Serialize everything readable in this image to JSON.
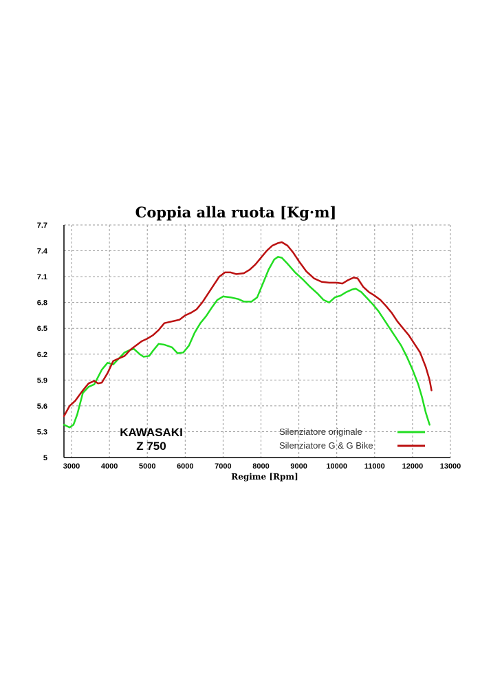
{
  "chart_data": {
    "type": "line",
    "title": "Coppia alla ruota [Kg·m]",
    "xlabel": "Regime [Rpm]",
    "ylabel": "",
    "xlim": [
      2800,
      13000
    ],
    "ylim": [
      5.0,
      7.7
    ],
    "x_ticks": [
      "3000",
      "4000",
      "5000",
      "6000",
      "7000",
      "8000",
      "9000",
      "10000",
      "11000",
      "12000",
      "13000"
    ],
    "y_ticks": [
      "7.7",
      "7.4",
      "7.1",
      "6.8",
      "6.5",
      "6.2",
      "5.9",
      "5.6",
      "5.3",
      "5"
    ],
    "grid": true,
    "legend_position": "bottom-right",
    "annotation": [
      "KAWASAKI",
      "Z 750"
    ],
    "series": [
      {
        "name": "Silenziatore originale",
        "color": "#22dd22",
        "points": [
          [
            2800,
            5.38
          ],
          [
            2950,
            5.35
          ],
          [
            3050,
            5.38
          ],
          [
            3150,
            5.5
          ],
          [
            3300,
            5.75
          ],
          [
            3450,
            5.82
          ],
          [
            3600,
            5.85
          ],
          [
            3800,
            6.02
          ],
          [
            3950,
            6.1
          ],
          [
            4100,
            6.08
          ],
          [
            4250,
            6.15
          ],
          [
            4400,
            6.22
          ],
          [
            4550,
            6.25
          ],
          [
            4650,
            6.26
          ],
          [
            4800,
            6.2
          ],
          [
            4900,
            6.17
          ],
          [
            5050,
            6.18
          ],
          [
            5150,
            6.24
          ],
          [
            5300,
            6.32
          ],
          [
            5450,
            6.31
          ],
          [
            5650,
            6.28
          ],
          [
            5800,
            6.21
          ],
          [
            5950,
            6.22
          ],
          [
            6100,
            6.3
          ],
          [
            6250,
            6.45
          ],
          [
            6400,
            6.56
          ],
          [
            6550,
            6.64
          ],
          [
            6700,
            6.74
          ],
          [
            6850,
            6.83
          ],
          [
            7000,
            6.87
          ],
          [
            7200,
            6.86
          ],
          [
            7400,
            6.84
          ],
          [
            7550,
            6.81
          ],
          [
            7750,
            6.81
          ],
          [
            7900,
            6.86
          ],
          [
            8050,
            7.02
          ],
          [
            8200,
            7.18
          ],
          [
            8350,
            7.3
          ],
          [
            8450,
            7.33
          ],
          [
            8550,
            7.32
          ],
          [
            8700,
            7.25
          ],
          [
            8900,
            7.15
          ],
          [
            9100,
            7.07
          ],
          [
            9300,
            6.98
          ],
          [
            9500,
            6.9
          ],
          [
            9650,
            6.83
          ],
          [
            9800,
            6.8
          ],
          [
            9950,
            6.86
          ],
          [
            10100,
            6.88
          ],
          [
            10250,
            6.92
          ],
          [
            10400,
            6.95
          ],
          [
            10500,
            6.96
          ],
          [
            10650,
            6.92
          ],
          [
            10800,
            6.85
          ],
          [
            10950,
            6.78
          ],
          [
            11100,
            6.7
          ],
          [
            11250,
            6.6
          ],
          [
            11400,
            6.5
          ],
          [
            11550,
            6.4
          ],
          [
            11700,
            6.3
          ],
          [
            11850,
            6.17
          ],
          [
            12000,
            6.02
          ],
          [
            12150,
            5.85
          ],
          [
            12250,
            5.7
          ],
          [
            12350,
            5.52
          ],
          [
            12450,
            5.38
          ]
        ]
      },
      {
        "name": "Silenziatore G & G Bike",
        "color": "#bb1111",
        "points": [
          [
            2800,
            5.48
          ],
          [
            2950,
            5.6
          ],
          [
            3100,
            5.66
          ],
          [
            3300,
            5.78
          ],
          [
            3450,
            5.86
          ],
          [
            3600,
            5.89
          ],
          [
            3700,
            5.86
          ],
          [
            3800,
            5.87
          ],
          [
            3950,
            5.98
          ],
          [
            4100,
            6.12
          ],
          [
            4250,
            6.15
          ],
          [
            4400,
            6.18
          ],
          [
            4550,
            6.25
          ],
          [
            4700,
            6.3
          ],
          [
            4850,
            6.35
          ],
          [
            5000,
            6.38
          ],
          [
            5150,
            6.42
          ],
          [
            5300,
            6.48
          ],
          [
            5450,
            6.56
          ],
          [
            5650,
            6.58
          ],
          [
            5850,
            6.6
          ],
          [
            6000,
            6.65
          ],
          [
            6150,
            6.68
          ],
          [
            6300,
            6.72
          ],
          [
            6450,
            6.8
          ],
          [
            6600,
            6.9
          ],
          [
            6750,
            7.0
          ],
          [
            6900,
            7.1
          ],
          [
            7050,
            7.15
          ],
          [
            7200,
            7.15
          ],
          [
            7350,
            7.13
          ],
          [
            7550,
            7.14
          ],
          [
            7700,
            7.18
          ],
          [
            7850,
            7.24
          ],
          [
            8000,
            7.32
          ],
          [
            8150,
            7.4
          ],
          [
            8300,
            7.46
          ],
          [
            8450,
            7.49
          ],
          [
            8550,
            7.5
          ],
          [
            8700,
            7.46
          ],
          [
            8850,
            7.38
          ],
          [
            9000,
            7.28
          ],
          [
            9200,
            7.16
          ],
          [
            9400,
            7.08
          ],
          [
            9600,
            7.04
          ],
          [
            9800,
            7.03
          ],
          [
            10000,
            7.03
          ],
          [
            10150,
            7.02
          ],
          [
            10300,
            7.06
          ],
          [
            10450,
            7.09
          ],
          [
            10550,
            7.08
          ],
          [
            10700,
            6.98
          ],
          [
            10850,
            6.92
          ],
          [
            11000,
            6.88
          ],
          [
            11150,
            6.83
          ],
          [
            11300,
            6.76
          ],
          [
            11450,
            6.68
          ],
          [
            11600,
            6.58
          ],
          [
            11750,
            6.5
          ],
          [
            11900,
            6.42
          ],
          [
            12050,
            6.32
          ],
          [
            12200,
            6.22
          ],
          [
            12350,
            6.05
          ],
          [
            12450,
            5.9
          ],
          [
            12500,
            5.78
          ]
        ]
      }
    ]
  }
}
